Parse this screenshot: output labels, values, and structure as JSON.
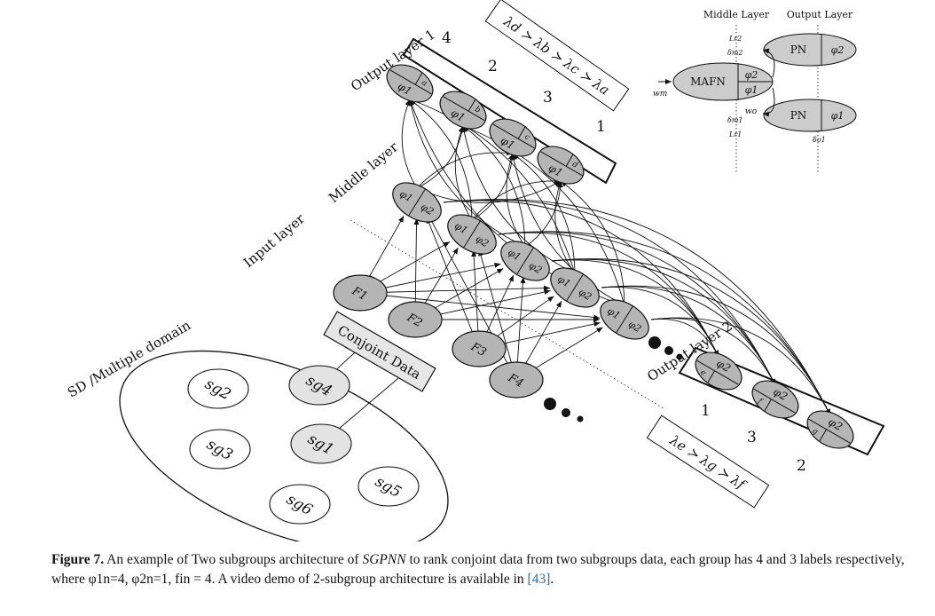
{
  "layers": {
    "output1": "Output layer 1",
    "middle": "Middle layer",
    "input": "Input layer",
    "output2": "Output layer 2",
    "domain": "SD /Multiple domain",
    "conjoint": "Conjoint Data"
  },
  "ranking1": {
    "text": "λd ≻ λb ≻ λc ≻ λa",
    "positions": [
      "4",
      "2",
      "3",
      "1"
    ]
  },
  "ranking2": {
    "text": "λe ≻ λg ≻ λf",
    "positions": [
      "1",
      "3",
      "2"
    ]
  },
  "output1_nodes": [
    {
      "phi": "φ1",
      "label": "a"
    },
    {
      "phi": "φ1",
      "label": "b"
    },
    {
      "phi": "φ1",
      "label": "c"
    },
    {
      "phi": "φ1",
      "label": "d"
    }
  ],
  "output2_nodes": [
    {
      "phi": "φ2",
      "label": "e"
    },
    {
      "phi": "φ2",
      "label": "f"
    },
    {
      "phi": "φ2",
      "label": "g"
    }
  ],
  "middle_nodes": [
    {
      "left": "φ1",
      "right": "φ2"
    },
    {
      "left": "φ1",
      "right": "φ2"
    },
    {
      "left": "φ1",
      "right": "φ2"
    },
    {
      "left": "φ1",
      "right": "φ2"
    },
    {
      "left": "φ1",
      "right": "φ2"
    }
  ],
  "input_nodes": [
    "F1",
    "F2",
    "F3",
    "F4"
  ],
  "subgroups": [
    "sg2",
    "sg4",
    "sg3",
    "sg1",
    "sg6",
    "sg5"
  ],
  "inset": {
    "middle_layer": "Middle Layer",
    "output_layer": "Output Layer",
    "mafn": "MAFN",
    "mafn_phi_top": "φ2",
    "mafn_phi_bottom": "φ1",
    "pn": "PN",
    "pn1_phi": "φ2",
    "pn2_phi": "φ1",
    "wm": "wm",
    "wo": "wo",
    "lr2": "Lr2",
    "delta_m2": "δm2",
    "delta_m1": "δm1",
    "lr1": "Lr1",
    "delta_o1": "δo1"
  },
  "caption": {
    "label": "Figure 7.",
    "pre": " An example of Two subgroups architecture of ",
    "model": "SGPNN",
    "post": " to rank conjoint data from two subgroups data, each group has 4 and 3 labels respectively, where φ1n=4, φ2n=1, fin = 4. A video demo of 2-subgroup architecture is available in ",
    "ref": "[43]",
    "end": "."
  }
}
